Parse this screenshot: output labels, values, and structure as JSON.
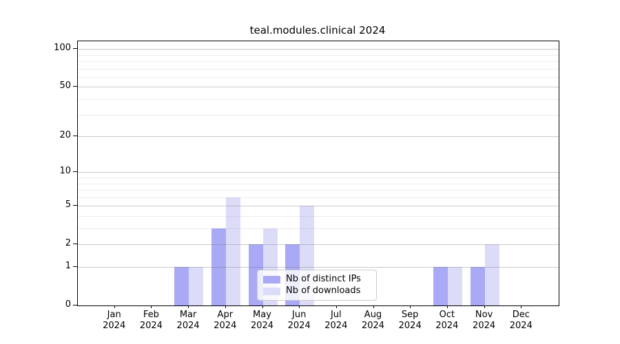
{
  "title": "teal.modules.clinical 2024",
  "chart_data": {
    "type": "bar",
    "title": "teal.modules.clinical 2024",
    "xlabel": "",
    "ylabel": "",
    "categories": [
      {
        "month": "Jan",
        "year": "2024"
      },
      {
        "month": "Feb",
        "year": "2024"
      },
      {
        "month": "Mar",
        "year": "2024"
      },
      {
        "month": "Apr",
        "year": "2024"
      },
      {
        "month": "May",
        "year": "2024"
      },
      {
        "month": "Jun",
        "year": "2024"
      },
      {
        "month": "Jul",
        "year": "2024"
      },
      {
        "month": "Aug",
        "year": "2024"
      },
      {
        "month": "Sep",
        "year": "2024"
      },
      {
        "month": "Oct",
        "year": "2024"
      },
      {
        "month": "Nov",
        "year": "2024"
      },
      {
        "month": "Dec",
        "year": "2024"
      }
    ],
    "series": [
      {
        "name": "Nb of distinct IPs",
        "color": "#a9a9f5",
        "values": [
          0,
          0,
          1,
          3,
          2,
          2,
          0,
          0,
          0,
          1,
          1,
          0
        ]
      },
      {
        "name": "Nb of downloads",
        "color": "#dcdcf9",
        "values": [
          0,
          0,
          1,
          6,
          3,
          5,
          0,
          0,
          0,
          1,
          2,
          0
        ]
      }
    ],
    "y_axis": {
      "scale": "log1p",
      "major_ticks": [
        0,
        1,
        2,
        5,
        10,
        20,
        50,
        100
      ],
      "minor_ticks": [
        3,
        4,
        6,
        7,
        8,
        9,
        30,
        40,
        60,
        70,
        80,
        90
      ],
      "range_top_value": 115
    },
    "legend": {
      "position": "lower-center-right-inside",
      "entries": [
        "Nb of distinct IPs",
        "Nb of downloads"
      ]
    },
    "grid": "on"
  }
}
